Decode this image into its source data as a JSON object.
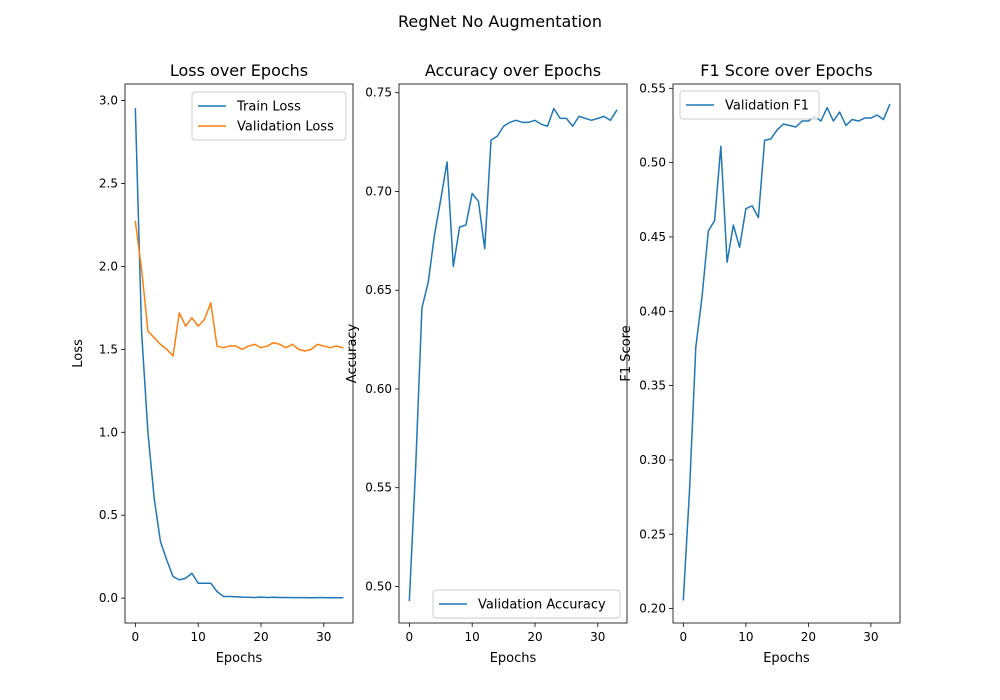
{
  "figure": {
    "title": "RegNet No Augmentation"
  },
  "chart_data": [
    {
      "type": "line",
      "title": "Loss over Epochs",
      "xlabel": "Epochs",
      "ylabel": "Loss",
      "xlim": [
        -1.65,
        34.65
      ],
      "ylim": [
        -0.15,
        3.1
      ],
      "xticks": [
        0,
        10,
        20,
        30
      ],
      "xtick_labels": [
        "0",
        "10",
        "20",
        "30"
      ],
      "yticks": [
        0.0,
        0.5,
        1.0,
        1.5,
        2.0,
        2.5,
        3.0
      ],
      "ytick_labels": [
        "0.0",
        "0.5",
        "1.0",
        "1.5",
        "2.0",
        "2.5",
        "3.0"
      ],
      "legend_position": "upper-right",
      "grid": false,
      "series": [
        {
          "name": "Train Loss",
          "color": "#1f77b4",
          "x": [
            0,
            1,
            2,
            3,
            4,
            5,
            6,
            7,
            8,
            9,
            10,
            11,
            12,
            13,
            14,
            15,
            16,
            17,
            18,
            19,
            20,
            21,
            22,
            23,
            24,
            25,
            26,
            27,
            28,
            29,
            30,
            31,
            32,
            33
          ],
          "y": [
            2.95,
            1.6,
            1.0,
            0.6,
            0.34,
            0.23,
            0.13,
            0.11,
            0.12,
            0.15,
            0.09,
            0.09,
            0.09,
            0.04,
            0.01,
            0.01,
            0.008,
            0.006,
            0.005,
            0.004,
            0.006,
            0.004,
            0.005,
            0.004,
            0.004,
            0.003,
            0.003,
            0.003,
            0.002,
            0.003,
            0.003,
            0.002,
            0.002,
            0.002
          ]
        },
        {
          "name": "Validation Loss",
          "color": "#ff7f0e",
          "x": [
            0,
            1,
            2,
            3,
            4,
            5,
            6,
            7,
            8,
            9,
            10,
            11,
            12,
            13,
            14,
            15,
            16,
            17,
            18,
            19,
            20,
            21,
            22,
            23,
            24,
            25,
            26,
            27,
            28,
            29,
            30,
            31,
            32,
            33
          ],
          "y": [
            2.27,
            1.98,
            1.61,
            1.57,
            1.53,
            1.5,
            1.46,
            1.72,
            1.64,
            1.69,
            1.64,
            1.68,
            1.78,
            1.52,
            1.51,
            1.52,
            1.52,
            1.5,
            1.52,
            1.53,
            1.51,
            1.52,
            1.54,
            1.53,
            1.51,
            1.53,
            1.5,
            1.49,
            1.5,
            1.53,
            1.52,
            1.51,
            1.52,
            1.51
          ]
        }
      ]
    },
    {
      "type": "line",
      "title": "Accuracy over Epochs",
      "xlabel": "Epochs",
      "ylabel": "Accuracy",
      "xlim": [
        -1.65,
        34.65
      ],
      "ylim": [
        0.4815,
        0.7544
      ],
      "xticks": [
        0,
        10,
        20,
        30
      ],
      "xtick_labels": [
        "0",
        "10",
        "20",
        "30"
      ],
      "yticks": [
        0.5,
        0.55,
        0.6,
        0.65,
        0.7,
        0.75
      ],
      "ytick_labels": [
        "0.50",
        "0.55",
        "0.60",
        "0.65",
        "0.70",
        "0.75"
      ],
      "legend_position": "lower-right",
      "grid": false,
      "series": [
        {
          "name": "Validation Accuracy",
          "color": "#1f77b4",
          "x": [
            0,
            1,
            2,
            3,
            4,
            5,
            6,
            7,
            8,
            9,
            10,
            11,
            12,
            13,
            14,
            15,
            16,
            17,
            18,
            19,
            20,
            21,
            22,
            23,
            24,
            25,
            26,
            27,
            28,
            29,
            30,
            31,
            32,
            33
          ],
          "y": [
            0.493,
            0.56,
            0.641,
            0.654,
            0.678,
            0.696,
            0.715,
            0.662,
            0.682,
            0.683,
            0.699,
            0.695,
            0.671,
            0.726,
            0.728,
            0.733,
            0.735,
            0.736,
            0.735,
            0.735,
            0.736,
            0.734,
            0.733,
            0.742,
            0.737,
            0.737,
            0.733,
            0.738,
            0.737,
            0.736,
            0.737,
            0.738,
            0.736,
            0.741
          ]
        }
      ]
    },
    {
      "type": "line",
      "title": "F1 Score over Epochs",
      "xlabel": "Epochs",
      "ylabel": "F1 Score",
      "xlim": [
        -1.65,
        34.65
      ],
      "ylim": [
        0.1903,
        0.5529
      ],
      "xticks": [
        0,
        10,
        20,
        30
      ],
      "xtick_labels": [
        "0",
        "10",
        "20",
        "30"
      ],
      "yticks": [
        0.2,
        0.25,
        0.3,
        0.35,
        0.4,
        0.45,
        0.5,
        0.55
      ],
      "ytick_labels": [
        "0.20",
        "0.25",
        "0.30",
        "0.35",
        "0.40",
        "0.45",
        "0.50",
        "0.55"
      ],
      "legend_position": "upper-left",
      "grid": false,
      "series": [
        {
          "name": "Validation F1",
          "color": "#1f77b4",
          "x": [
            0,
            1,
            2,
            3,
            4,
            5,
            6,
            7,
            8,
            9,
            10,
            11,
            12,
            13,
            14,
            15,
            16,
            17,
            18,
            19,
            20,
            21,
            22,
            23,
            24,
            25,
            26,
            27,
            28,
            29,
            30,
            31,
            32,
            33
          ],
          "y": [
            0.206,
            0.28,
            0.376,
            0.41,
            0.454,
            0.461,
            0.511,
            0.433,
            0.458,
            0.443,
            0.469,
            0.471,
            0.463,
            0.515,
            0.516,
            0.522,
            0.526,
            0.525,
            0.524,
            0.528,
            0.528,
            0.531,
            0.528,
            0.537,
            0.528,
            0.534,
            0.525,
            0.529,
            0.528,
            0.53,
            0.53,
            0.532,
            0.529,
            0.539
          ]
        }
      ]
    }
  ]
}
